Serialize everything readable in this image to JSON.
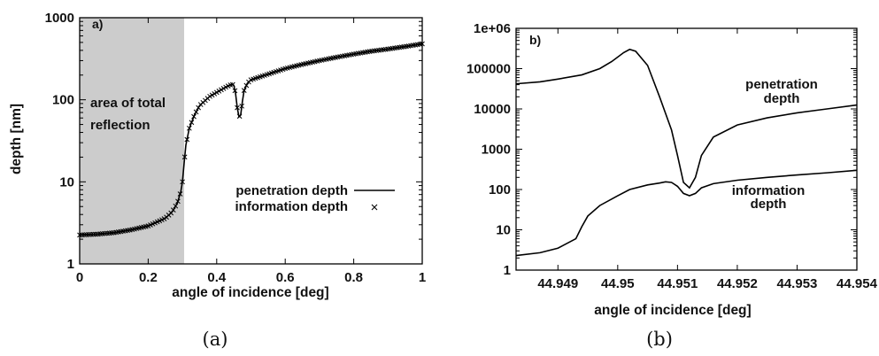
{
  "chart_data": [
    {
      "panel": "a)",
      "caption": "(a)",
      "type": "line",
      "xlabel": "angle of incidence [deg]",
      "ylabel": "depth [nm]",
      "xlim": [
        0,
        1
      ],
      "ylim": [
        1,
        1000
      ],
      "yscale": "log",
      "x_ticks": [
        "0",
        "0.2",
        "0.4",
        "0.6",
        "0.8",
        "1"
      ],
      "y_ticks": [
        "1",
        "10",
        "100",
        "1000"
      ],
      "shaded_region": {
        "x": [
          0,
          0.305
        ],
        "label_lines": [
          "area of total",
          "reflection"
        ],
        "color": "#cccccc"
      },
      "legend": {
        "placement": "center-right",
        "entries": [
          "penetration depth",
          "information depth"
        ]
      },
      "series": [
        {
          "name": "penetration depth",
          "style": "line",
          "color": "#000000",
          "points": [
            [
              0,
              2.25
            ],
            [
              0.05,
              2.3
            ],
            [
              0.1,
              2.4
            ],
            [
              0.15,
              2.6
            ],
            [
              0.2,
              2.9
            ],
            [
              0.25,
              3.6
            ],
            [
              0.27,
              4.3
            ],
            [
              0.285,
              5.5
            ],
            [
              0.295,
              7.5
            ],
            [
              0.3,
              10
            ],
            [
              0.305,
              17
            ],
            [
              0.31,
              28
            ],
            [
              0.32,
              45
            ],
            [
              0.335,
              65
            ],
            [
              0.35,
              85
            ],
            [
              0.38,
              110
            ],
            [
              0.41,
              130
            ],
            [
              0.43,
              145
            ],
            [
              0.445,
              155
            ],
            [
              0.45,
              150
            ],
            [
              0.455,
              120
            ],
            [
              0.46,
              80
            ],
            [
              0.465,
              62
            ],
            [
              0.47,
              65
            ],
            [
              0.475,
              95
            ],
            [
              0.48,
              130
            ],
            [
              0.49,
              160
            ],
            [
              0.5,
              175
            ],
            [
              0.55,
              205
            ],
            [
              0.6,
              240
            ],
            [
              0.65,
              270
            ],
            [
              0.7,
              300
            ],
            [
              0.75,
              330
            ],
            [
              0.8,
              360
            ],
            [
              0.85,
              390
            ],
            [
              0.9,
              415
            ],
            [
              0.95,
              445
            ],
            [
              1,
              480
            ]
          ]
        },
        {
          "name": "information depth",
          "style": "markers",
          "marker": "x",
          "color": "#000000",
          "points": [
            [
              0,
              2.25
            ],
            [
              0.05,
              2.3
            ],
            [
              0.1,
              2.4
            ],
            [
              0.15,
              2.6
            ],
            [
              0.2,
              2.9
            ],
            [
              0.25,
              3.6
            ],
            [
              0.27,
              4.3
            ],
            [
              0.285,
              5.5
            ],
            [
              0.295,
              7.5
            ],
            [
              0.3,
              10
            ],
            [
              0.305,
              17
            ],
            [
              0.31,
              28
            ],
            [
              0.32,
              45
            ],
            [
              0.335,
              65
            ],
            [
              0.35,
              85
            ],
            [
              0.38,
              110
            ],
            [
              0.41,
              130
            ],
            [
              0.43,
              145
            ],
            [
              0.445,
              155
            ],
            [
              0.45,
              150
            ],
            [
              0.455,
              120
            ],
            [
              0.46,
              80
            ],
            [
              0.465,
              62
            ],
            [
              0.47,
              65
            ],
            [
              0.475,
              95
            ],
            [
              0.48,
              130
            ],
            [
              0.49,
              160
            ],
            [
              0.5,
              175
            ],
            [
              0.55,
              205
            ],
            [
              0.6,
              240
            ],
            [
              0.65,
              270
            ],
            [
              0.7,
              300
            ],
            [
              0.75,
              330
            ],
            [
              0.8,
              360
            ],
            [
              0.85,
              390
            ],
            [
              0.9,
              415
            ],
            [
              0.95,
              445
            ],
            [
              1,
              480
            ]
          ]
        }
      ]
    },
    {
      "panel": "b)",
      "caption": "(b)",
      "type": "line",
      "xlabel": "angle of incidence [deg]",
      "ylabel": "",
      "xlim": [
        44.9483,
        44.954
      ],
      "ylim": [
        1,
        1000000
      ],
      "yscale": "log",
      "x_ticks": [
        "44.949",
        "44.95",
        "44.951",
        "44.952",
        "44.953",
        "44.954"
      ],
      "y_ticks": [
        "1",
        "10",
        "100",
        "1000",
        "10000",
        "100000",
        "1e+06"
      ],
      "series": [
        {
          "name": "penetration depth",
          "label_lines": [
            "penetration",
            "depth"
          ],
          "color": "#000000",
          "points": [
            [
              44.9483,
              42000
            ],
            [
              44.9487,
              47000
            ],
            [
              44.949,
              55000
            ],
            [
              44.9494,
              70000
            ],
            [
              44.9497,
              100000
            ],
            [
              44.9499,
              150000
            ],
            [
              44.9501,
              250000
            ],
            [
              44.9502,
              300000
            ],
            [
              44.9503,
              270000
            ],
            [
              44.9505,
              120000
            ],
            [
              44.9507,
              20000
            ],
            [
              44.9509,
              3000
            ],
            [
              44.951,
              700
            ],
            [
              44.9511,
              150
            ],
            [
              44.9512,
              110
            ],
            [
              44.9513,
              200
            ],
            [
              44.9514,
              700
            ],
            [
              44.9516,
              2000
            ],
            [
              44.952,
              4000
            ],
            [
              44.9525,
              6000
            ],
            [
              44.953,
              8000
            ],
            [
              44.9535,
              10000
            ],
            [
              44.954,
              12500
            ]
          ]
        },
        {
          "name": "information depth",
          "label_lines": [
            "information",
            "depth"
          ],
          "color": "#000000",
          "points": [
            [
              44.9483,
              2.3
            ],
            [
              44.9487,
              2.7
            ],
            [
              44.949,
              3.5
            ],
            [
              44.9493,
              6
            ],
            [
              44.9494,
              12
            ],
            [
              44.9495,
              22
            ],
            [
              44.9497,
              40
            ],
            [
              44.95,
              70
            ],
            [
              44.9502,
              100
            ],
            [
              44.9505,
              130
            ],
            [
              44.9507,
              145
            ],
            [
              44.9508,
              155
            ],
            [
              44.9509,
              150
            ],
            [
              44.951,
              120
            ],
            [
              44.9511,
              80
            ],
            [
              44.9512,
              70
            ],
            [
              44.9513,
              80
            ],
            [
              44.9514,
              110
            ],
            [
              44.9516,
              140
            ],
            [
              44.952,
              170
            ],
            [
              44.9525,
              200
            ],
            [
              44.953,
              230
            ],
            [
              44.9535,
              260
            ],
            [
              44.954,
              300
            ]
          ]
        }
      ]
    }
  ]
}
